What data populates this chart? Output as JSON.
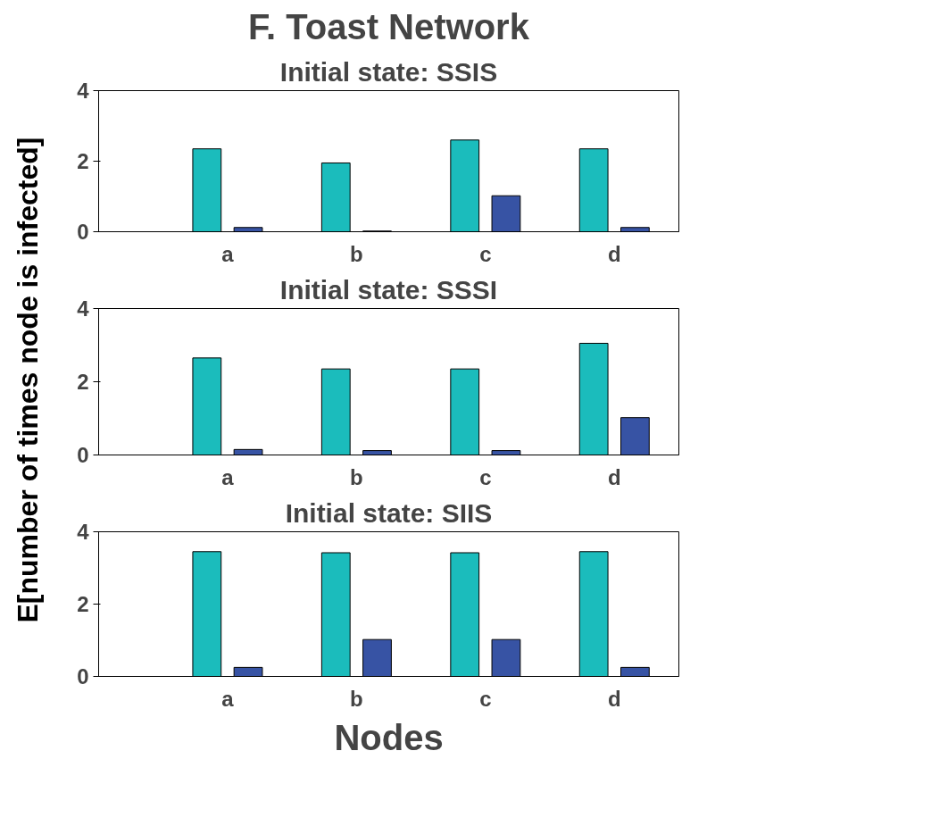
{
  "chart_data": [
    {
      "type": "bar",
      "title": "F. Toast Network",
      "subtitle": "Initial state: SSIS",
      "categories": [
        "a",
        "b",
        "c",
        "d"
      ],
      "series": [
        {
          "color": "#1bbcbc",
          "values": [
            2.35,
            1.95,
            2.6,
            2.35
          ]
        },
        {
          "color": "#3753a4",
          "values": [
            0.12,
            0.02,
            1.02,
            0.12
          ]
        }
      ],
      "ylim": [
        0,
        4
      ],
      "yticks": [
        0,
        2,
        4
      ],
      "grid": false
    },
    {
      "type": "bar",
      "subtitle": "Initial state: SSSI",
      "ylabel": "E[number of times node is infected]",
      "categories": [
        "a",
        "b",
        "c",
        "d"
      ],
      "series": [
        {
          "color": "#1bbcbc",
          "values": [
            2.65,
            2.35,
            2.35,
            3.05
          ]
        },
        {
          "color": "#3753a4",
          "values": [
            0.15,
            0.12,
            0.12,
            1.02
          ]
        }
      ],
      "ylim": [
        0,
        4
      ],
      "yticks": [
        0,
        2,
        4
      ],
      "grid": false
    },
    {
      "type": "bar",
      "subtitle": "Initial state: SIIS",
      "xlabel": "Nodes",
      "categories": [
        "a",
        "b",
        "c",
        "d"
      ],
      "series": [
        {
          "color": "#1bbcbc",
          "values": [
            3.45,
            3.42,
            3.42,
            3.45
          ]
        },
        {
          "color": "#3753a4",
          "values": [
            0.25,
            1.02,
            1.02,
            0.25
          ]
        }
      ],
      "ylim": [
        0,
        4
      ],
      "yticks": [
        0,
        2,
        4
      ],
      "grid": false
    }
  ]
}
